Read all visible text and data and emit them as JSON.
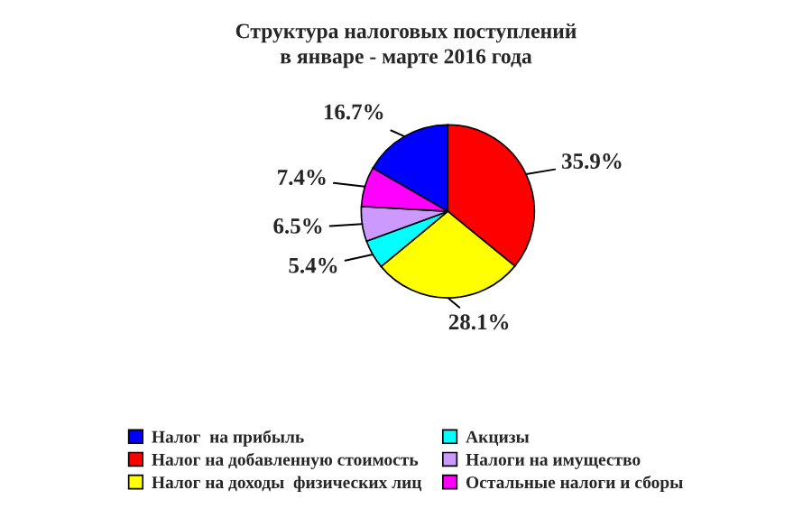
{
  "chart_data": {
    "type": "pie",
    "title": "Структура налоговых поступлений\nв январе - марте 2016 года",
    "categories": [
      "Налог  на прибыль",
      "Налог на добавленную стоимость",
      "Налог на доходы  физических лиц",
      "Акцизы",
      "Налоги на имущество",
      "Остальные налоги и сборы"
    ],
    "values": [
      16.7,
      35.9,
      28.1,
      5.4,
      6.5,
      7.4
    ],
    "value_labels": [
      "16.7%",
      "35.9%",
      "28.1%",
      "5.4%",
      "6.5%",
      "7.4%"
    ],
    "colors": [
      "#0000ff",
      "#ff0000",
      "#ffff00",
      "#00ffff",
      "#cc99ff",
      "#ff00ff"
    ],
    "legend": "bottom"
  }
}
